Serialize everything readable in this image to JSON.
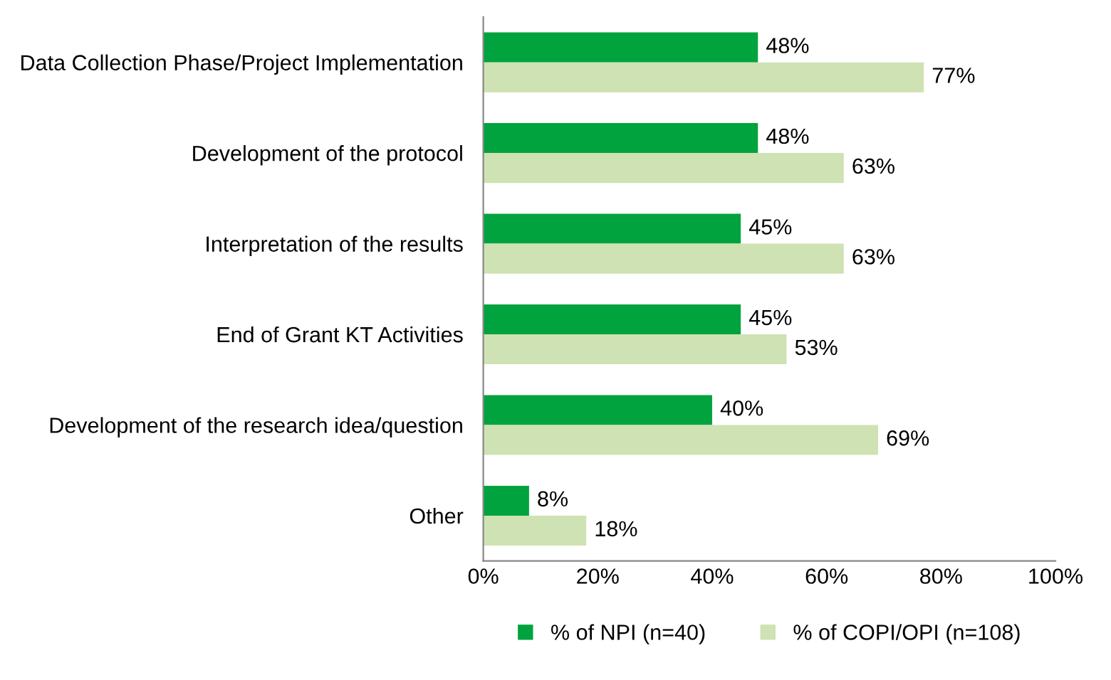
{
  "chart_data": {
    "type": "bar",
    "orientation": "horizontal",
    "categories": [
      "Data Collection Phase/Project Implementation",
      "Development of the protocol",
      "Interpretation of the results",
      "End of Grant KT Activities",
      "Development of the research idea/question",
      "Other"
    ],
    "series": [
      {
        "name": "% of NPI (n=40)",
        "color": "#00a33e",
        "values": [
          48,
          48,
          45,
          45,
          40,
          8
        ],
        "value_labels": [
          "48%",
          "48%",
          "45%",
          "45%",
          "40%",
          "8%"
        ]
      },
      {
        "name": "% of COPI/OPI (n=108)",
        "color": "#cfe2b3",
        "values": [
          77,
          63,
          63,
          53,
          69,
          18
        ],
        "value_labels": [
          "77%",
          "63%",
          "63%",
          "53%",
          "69%",
          "18%"
        ]
      }
    ],
    "xlim": [
      0,
      100
    ],
    "xticks": [
      {
        "value": 0,
        "label": "0%"
      },
      {
        "value": 20,
        "label": "20%"
      },
      {
        "value": 40,
        "label": "40%"
      },
      {
        "value": 60,
        "label": "60%"
      },
      {
        "value": 80,
        "label": "80%"
      },
      {
        "value": 100,
        "label": "100%"
      }
    ],
    "grid": false,
    "legend": "bottom"
  }
}
